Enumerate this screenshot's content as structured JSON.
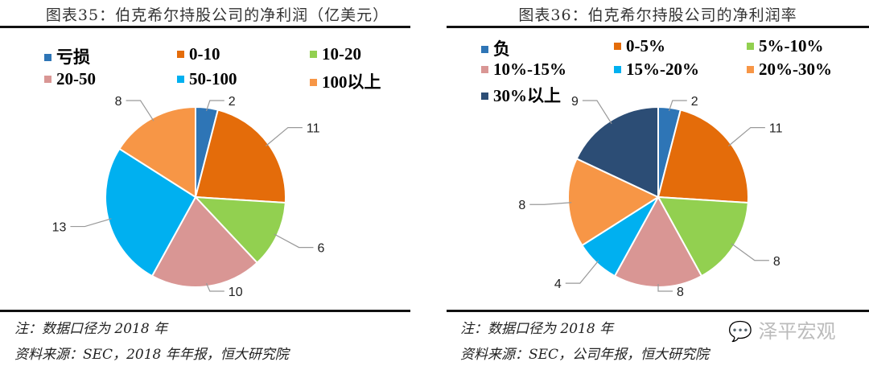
{
  "chart_data": [
    {
      "type": "pie",
      "title": "图表35：伯克希尔持股公司的净利润（亿美元）",
      "categories": [
        "亏损",
        "0-10",
        "10-20",
        "20-50",
        "50-100",
        "100以上"
      ],
      "values": [
        2,
        11,
        6,
        10,
        13,
        8
      ],
      "colors": [
        "#2E75B6",
        "#E46C0A",
        "#92D050",
        "#D99694",
        "#00B0F0",
        "#F79646"
      ],
      "legend": "top",
      "note": "注：数据口径为 2018 年",
      "source": "资料来源：SEC，2018 年年报，恒大研究院"
    },
    {
      "type": "pie",
      "title": "图表36：伯克希尔持股公司的净利润率",
      "categories": [
        "负",
        "0-5%",
        "5%-10%",
        "10%-15%",
        "15%-20%",
        "20%-30%",
        "30%以上"
      ],
      "values": [
        2,
        11,
        8,
        8,
        4,
        8,
        9
      ],
      "colors": [
        "#2E75B6",
        "#E46C0A",
        "#92D050",
        "#D99694",
        "#00B0F0",
        "#F79646",
        "#2C4D75"
      ],
      "legend": "top",
      "note": "注：数据口径为 2018 年",
      "source": "资料来源：SEC，公司年报，恒大研究院"
    }
  ],
  "watermark": "泽平宏观"
}
